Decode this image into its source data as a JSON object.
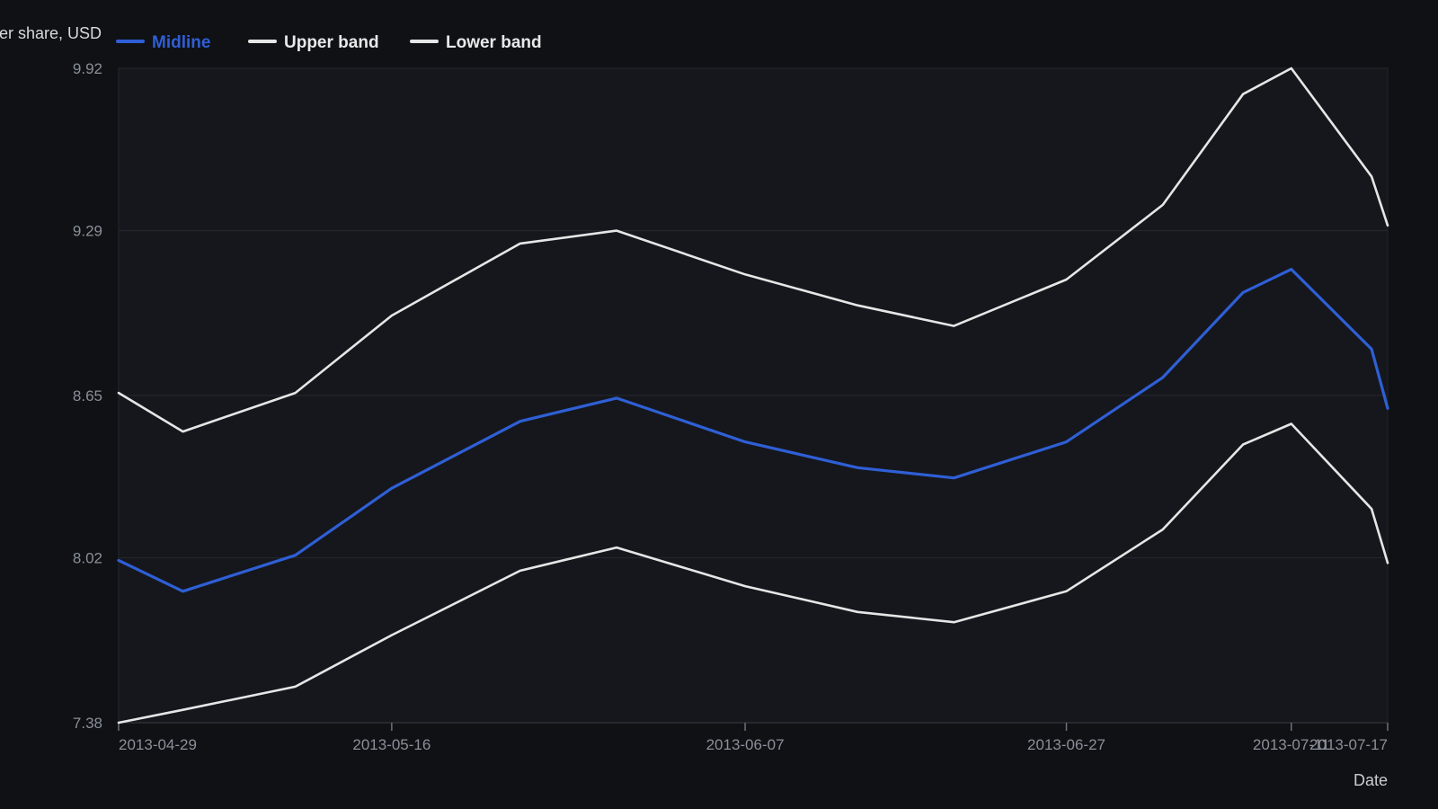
{
  "chart_data": {
    "type": "line",
    "title": "",
    "ylabel": "…er share, USD",
    "xlabel": "Date",
    "ylim": [
      7.38,
      9.92
    ],
    "yticks": [
      "7.38",
      "8.02",
      "8.65",
      "9.29",
      "9.92"
    ],
    "xticks": [
      "2013-04-29",
      "2013-05-16",
      "2013-06-07",
      "2013-06-27",
      "2013-07-11",
      "2013-07-17"
    ],
    "x": [
      "2013-04-29",
      "2013-05-03",
      "2013-05-10",
      "2013-05-16",
      "2013-05-24",
      "2013-05-30",
      "2013-06-07",
      "2013-06-14",
      "2013-06-20",
      "2013-06-27",
      "2013-07-03",
      "2013-07-08",
      "2013-07-11",
      "2013-07-16",
      "2013-07-17"
    ],
    "series": [
      {
        "name": "Midline",
        "color": "#2f5fd6",
        "values": [
          8.01,
          7.89,
          8.03,
          8.29,
          8.55,
          8.64,
          8.47,
          8.37,
          8.33,
          8.47,
          8.72,
          9.05,
          9.14,
          8.83,
          8.6
        ]
      },
      {
        "name": "Upper band",
        "color": "#e6e6e6",
        "values": [
          8.66,
          8.51,
          8.66,
          8.96,
          9.24,
          9.29,
          9.12,
          9.0,
          8.92,
          9.1,
          9.39,
          9.82,
          9.92,
          9.5,
          9.31
        ]
      },
      {
        "name": "Lower band",
        "color": "#e6e6e6",
        "values": [
          7.38,
          7.43,
          7.52,
          7.72,
          7.97,
          8.06,
          7.91,
          7.81,
          7.77,
          7.89,
          8.13,
          8.46,
          8.54,
          8.21,
          8.0
        ]
      }
    ],
    "grid": true,
    "legend": "top-left"
  }
}
